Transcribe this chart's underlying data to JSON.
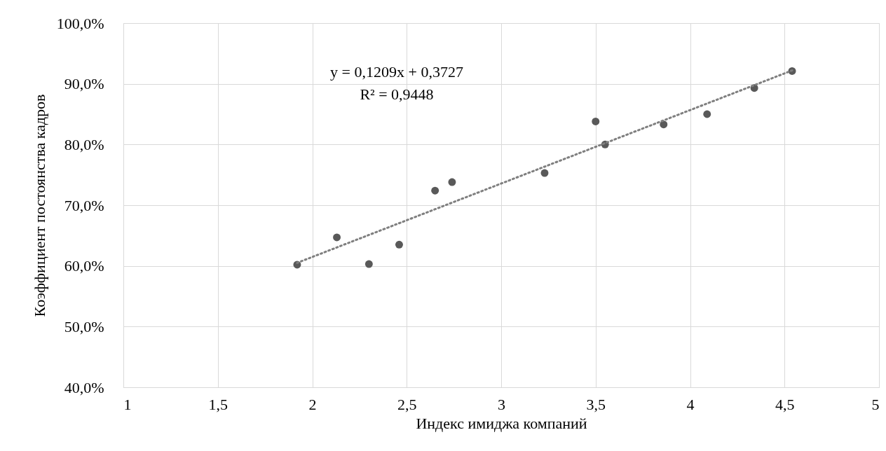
{
  "chart_data": {
    "type": "scatter",
    "xlabel": "Индекс имиджа компаний",
    "ylabel": "Коэффициент постоянства кадров",
    "annotations": [
      "y = 0,1209x + 0,3727",
      "R² = 0,9448"
    ],
    "series": [
      {
        "color": "#595959",
        "marker": "circle",
        "x": [
          1.92,
          2.13,
          2.3,
          2.46,
          2.65,
          2.74,
          3.23,
          3.5,
          3.55,
          3.86,
          4.09,
          4.34,
          4.54
        ],
        "values": [
          60.2,
          64.7,
          60.3,
          63.5,
          72.4,
          73.8,
          75.3,
          83.8,
          80.0,
          83.3,
          85.0,
          89.3,
          92.1
        ]
      },
      {
        "type": "line",
        "color": "#7f7f7f",
        "line_style": "dotted",
        "x": [
          1.92,
          4.54
        ],
        "values": [
          60.5,
          92.2
        ]
      }
    ],
    "xlim": [
      1,
      5
    ],
    "xticks": [
      1,
      {
        "value": 1.5,
        "label": "1,5"
      },
      2,
      {
        "value": 2.5,
        "label": "2,5"
      },
      3,
      {
        "value": 3.5,
        "label": "3,5"
      },
      4,
      {
        "value": 4.5,
        "label": "4,5"
      },
      5
    ],
    "ylim": [
      40,
      100
    ],
    "yticks": [
      {
        "value": 40,
        "label": "40,0%"
      },
      {
        "value": 50,
        "label": "50,0%"
      },
      {
        "value": 60,
        "label": "60,0%"
      },
      {
        "value": 70,
        "label": "70,0%"
      },
      {
        "value": 80,
        "label": "80,0%"
      },
      {
        "value": 90,
        "label": "90,0%"
      },
      {
        "value": 100,
        "label": "100,0%"
      }
    ],
    "grid": true
  }
}
